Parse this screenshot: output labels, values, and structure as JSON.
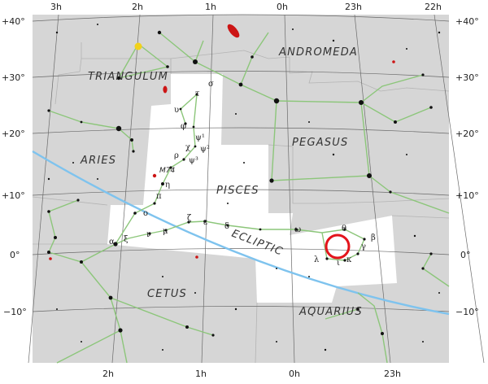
{
  "ra_labels_top": [
    "3h",
    "2h",
    "1h",
    "0h",
    "23h",
    "22h"
  ],
  "ra_labels_bottom": [
    "2h",
    "1h",
    "0h",
    "23h"
  ],
  "dec_labels_left": [
    "+40°",
    "+30°",
    "+20°",
    "+10°",
    "0°",
    "−10°"
  ],
  "dec_labels_right": [
    "+40°",
    "+30°",
    "+20°",
    "+10°",
    "0°",
    "−10°"
  ],
  "constellations": {
    "andromeda": "ANDROMEDA",
    "triangulum": "TRIANGULUM",
    "pegasus": "PEGASUS",
    "aries": "ARIES",
    "pisces": "PISCES",
    "cetus": "CETUS",
    "aquarius": "AQUARIUS"
  },
  "ecliptic_label": "ECLIPTIC",
  "deep_sky_label": "M74",
  "star_labels": [
    "σ",
    "τ",
    "υ",
    "φ",
    "χ",
    "ψ¹",
    "ψ²",
    "ψ³",
    "ρ",
    "η",
    "π",
    "ο",
    "ζ",
    "ε",
    "δ",
    "α",
    "ξ",
    "ν",
    "μ",
    "ω",
    "θ",
    "β",
    "γ",
    "λ",
    "κ",
    "ι"
  ],
  "colors": {
    "background": "#d6d6d6",
    "highlight_region": "#ffffff",
    "grid": "#666666",
    "stick_figure": "#8cc67a",
    "ecliptic": "#7ec3ee",
    "marker": "#e3141b",
    "galaxy": "#cc1515",
    "cluster": "#f2d21b"
  },
  "marker": "circle-marker"
}
